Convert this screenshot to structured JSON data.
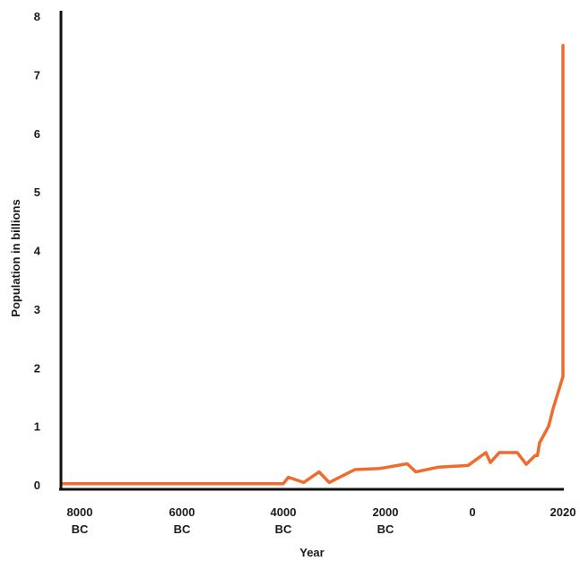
{
  "chart_data": {
    "type": "line",
    "title": "",
    "xlabel": "Year",
    "ylabel": "Population in billions",
    "xlim": [
      -8500,
      2050
    ],
    "ylim": [
      0,
      8
    ],
    "grid": false,
    "line_color": "#EE6C2F",
    "axis_color": "#111111",
    "y_ticks": [
      {
        "value": 0,
        "label": "0"
      },
      {
        "value": 1,
        "label": "1"
      },
      {
        "value": 2,
        "label": "2"
      },
      {
        "value": 3,
        "label": "3"
      },
      {
        "value": 4,
        "label": "4"
      },
      {
        "value": 5,
        "label": "5"
      },
      {
        "value": 6,
        "label": "6"
      },
      {
        "value": 7,
        "label": "7"
      },
      {
        "value": 8,
        "label": "8"
      }
    ],
    "x_ticks": [
      {
        "value": -8000,
        "lines": [
          "8000",
          "BC"
        ]
      },
      {
        "value": -6000,
        "lines": [
          "6000",
          "BC"
        ]
      },
      {
        "value": -4000,
        "lines": [
          "4000",
          "BC"
        ]
      },
      {
        "value": -2000,
        "lines": [
          "2000",
          "BC"
        ]
      },
      {
        "value": 0,
        "lines": [
          "0"
        ]
      },
      {
        "value": 2020,
        "lines": [
          "2020"
        ]
      }
    ],
    "series": [
      {
        "x": [
          -8500,
          -4000,
          -3900,
          -3600,
          -3300,
          -3100,
          -2600,
          -2100,
          -1500,
          -1300,
          -800,
          -100,
          300,
          400,
          600,
          1000,
          1200,
          1400,
          1450,
          1500,
          1700,
          1800,
          2020,
          2020
        ],
        "y": [
          0.02,
          0.02,
          0.13,
          0.04,
          0.22,
          0.04,
          0.26,
          0.28,
          0.36,
          0.22,
          0.3,
          0.33,
          0.55,
          0.38,
          0.55,
          0.55,
          0.35,
          0.5,
          0.5,
          0.72,
          1.0,
          1.3,
          1.85,
          7.5
        ]
      }
    ]
  }
}
